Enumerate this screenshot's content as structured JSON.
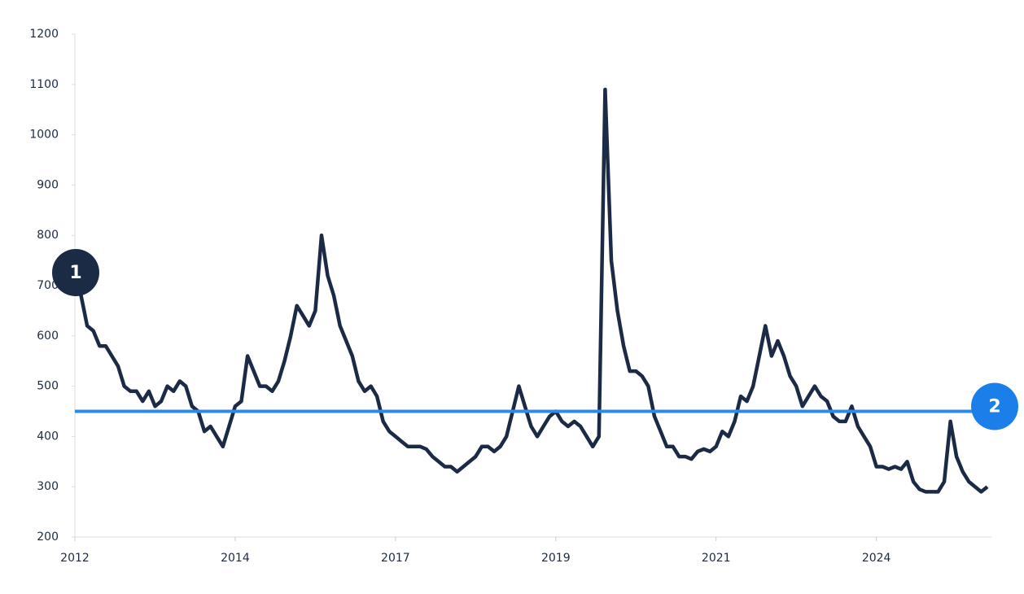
{
  "chart_data": {
    "type": "line",
    "categories": [
      "2012",
      null,
      null,
      null,
      null,
      null,
      null,
      null,
      null,
      null,
      null,
      null,
      null,
      null,
      null,
      null,
      null,
      null,
      null,
      null,
      null,
      null,
      null,
      null,
      null,
      null,
      "2014",
      null,
      null,
      null,
      null,
      null,
      null,
      null,
      null,
      null,
      null,
      null,
      null,
      null,
      null,
      null,
      null,
      null,
      null,
      null,
      null,
      null,
      null,
      null,
      null,
      null,
      "2017",
      null,
      null,
      null,
      null,
      null,
      null,
      null,
      null,
      null,
      null,
      null,
      null,
      null,
      null,
      null,
      null,
      null,
      null,
      null,
      null,
      null,
      null,
      null,
      null,
      null,
      "2019",
      null,
      null,
      null,
      null,
      null,
      null,
      null,
      null,
      null,
      null,
      null,
      null,
      null,
      null,
      null,
      null,
      null,
      null,
      null,
      null,
      null,
      null,
      null,
      null,
      null,
      "2021",
      null,
      null,
      null,
      null,
      null,
      null,
      null,
      null,
      null,
      null,
      null,
      null,
      null,
      null,
      null,
      null,
      null,
      null,
      null,
      null,
      null,
      null,
      null,
      null,
      null,
      "2024",
      null,
      null,
      null,
      null,
      null,
      null,
      null,
      null,
      null,
      null,
      null,
      null,
      null,
      null,
      null,
      null,
      null,
      null
    ],
    "values": [
      700,
      680,
      620,
      610,
      580,
      580,
      560,
      540,
      500,
      490,
      490,
      470,
      490,
      460,
      470,
      500,
      490,
      510,
      500,
      460,
      450,
      410,
      420,
      400,
      380,
      420,
      460,
      470,
      560,
      530,
      500,
      500,
      490,
      510,
      550,
      600,
      660,
      640,
      620,
      650,
      800,
      720,
      680,
      620,
      590,
      560,
      510,
      490,
      500,
      480,
      430,
      410,
      400,
      390,
      380,
      380,
      380,
      375,
      360,
      350,
      340,
      340,
      330,
      340,
      350,
      360,
      380,
      380,
      370,
      380,
      400,
      450,
      500,
      460,
      420,
      400,
      420,
      440,
      450,
      430,
      420,
      430,
      420,
      400,
      380,
      400,
      1090,
      750,
      650,
      580,
      530,
      530,
      520,
      500,
      440,
      410,
      380,
      380,
      360,
      360,
      355,
      370,
      375,
      370,
      380,
      410,
      400,
      430,
      480,
      470,
      500,
      560,
      620,
      560,
      590,
      560,
      520,
      500,
      460,
      480,
      500,
      480,
      470,
      440,
      430,
      430,
      460,
      420,
      400,
      380,
      340,
      340,
      335,
      340,
      335,
      350,
      310,
      295,
      290,
      290,
      290,
      310,
      430,
      360,
      330,
      310,
      300,
      290,
      300
    ],
    "color": "#1b2a45",
    "ylim": [
      200,
      1200
    ],
    "yticks": [
      200,
      300,
      400,
      500,
      600,
      700,
      800,
      900,
      1000,
      1100,
      1200
    ],
    "reference_line": {
      "value": 450,
      "color": "#2b8be6"
    },
    "annotations": [
      "1",
      "2"
    ]
  }
}
